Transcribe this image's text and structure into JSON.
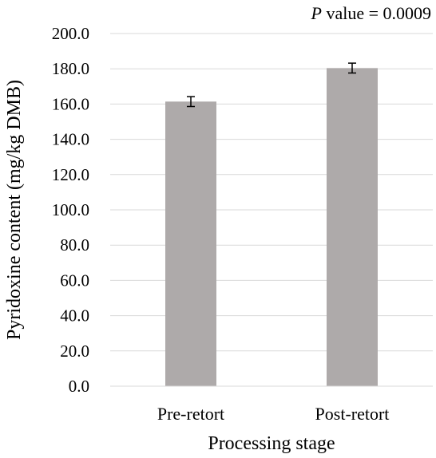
{
  "chart_data": {
    "type": "bar",
    "categories": [
      "Pre-retort",
      "Post-retort"
    ],
    "values": [
      161.4,
      180.4
    ],
    "error": [
      2.8,
      2.8
    ],
    "xlabel": "Processing stage",
    "ylabel": "Pyridoxine content (mg/kg DMB)",
    "ylim": [
      0,
      200
    ],
    "yticks": [
      "0.0",
      "20.0",
      "40.0",
      "60.0",
      "80.0",
      "100.0",
      "120.0",
      "140.0",
      "160.0",
      "180.0",
      "200.0"
    ],
    "annotation": {
      "italic": "P",
      "text": " value = 0.0009"
    },
    "grid": true,
    "legend": "none",
    "colors": {
      "bar": "#aeaaaa",
      "grid": "#d9d9d9",
      "axis": "#d9d9d9",
      "errorbar": "#000000"
    }
  }
}
